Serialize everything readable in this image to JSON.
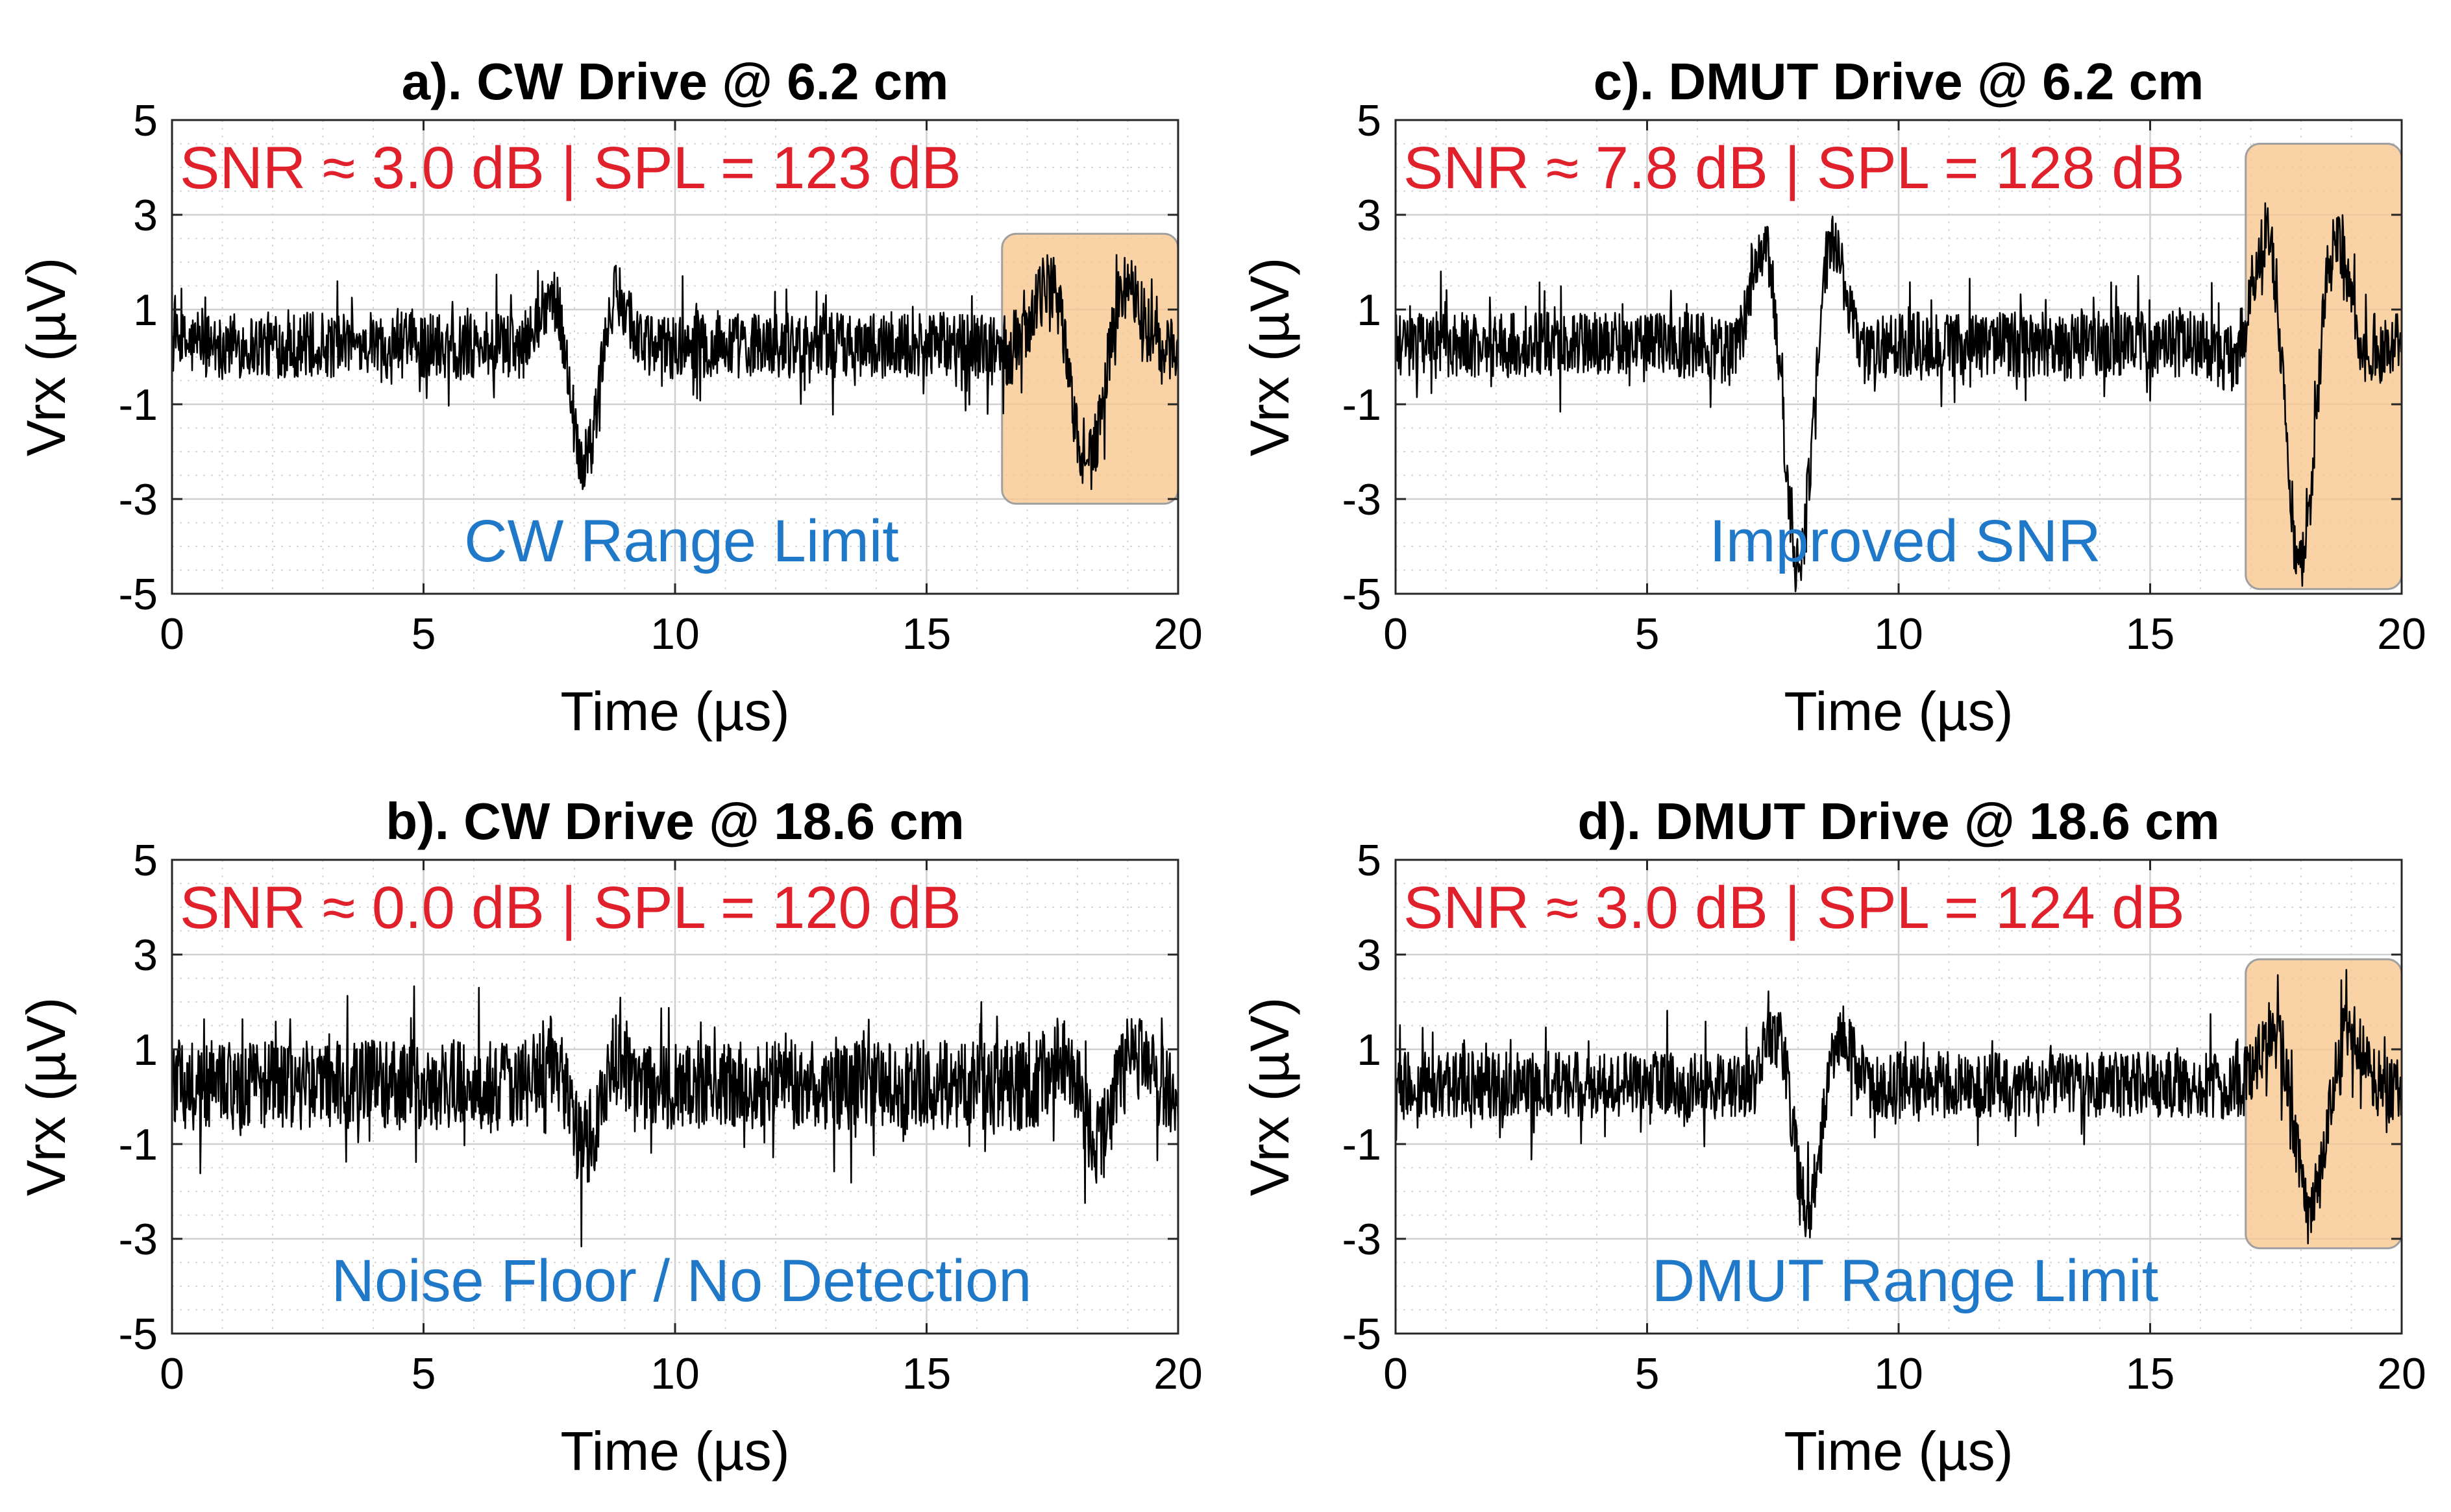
{
  "chart_data": [
    {
      "type": "line",
      "title": "a). CW Drive @ 6.2 cm",
      "xlabel": "Time (µs)",
      "ylabel": "Vrx (µV)",
      "xlim": [
        0,
        20
      ],
      "ylim": [
        -5,
        5
      ],
      "xticks": [
        0,
        5,
        10,
        15,
        20
      ],
      "yticks": [
        -5,
        -3,
        -1,
        1,
        3,
        5
      ],
      "xtick_labels": [
        "0",
        "5",
        "10",
        "15",
        "20"
      ],
      "ytick_labels": [
        "-5",
        "-3",
        "-1",
        "1",
        "3",
        "5"
      ],
      "grid": true,
      "minor_grid": true,
      "snr_text": "SNR ≈ 3.0 dB | SPL = 123 dB",
      "annotation": "CW Range Limit",
      "highlight_x": [
        16.5,
        20
      ],
      "highlight_y": [
        -3.1,
        2.6
      ],
      "series": [
        {
          "name": "Vrx",
          "noise_amp": 0.7,
          "pulses": [
            {
              "t": 8.2,
              "amp": 2.5,
              "width": 0.55,
              "freq": 0.62
            },
            {
              "t": 18.2,
              "amp": 2.5,
              "width": 0.75,
              "freq": 0.55
            }
          ]
        }
      ]
    },
    {
      "type": "line",
      "title": "b). CW Drive @ 18.6 cm",
      "xlabel": "Time (µs)",
      "ylabel": "Vrx (µV)",
      "xlim": [
        0,
        20
      ],
      "ylim": [
        -5,
        5
      ],
      "xticks": [
        0,
        5,
        10,
        15,
        20
      ],
      "yticks": [
        -5,
        -3,
        -1,
        1,
        3,
        5
      ],
      "xtick_labels": [
        "0",
        "5",
        "10",
        "15",
        "20"
      ],
      "ytick_labels": [
        "-5",
        "-3",
        "-1",
        "1",
        "3",
        "5"
      ],
      "grid": true,
      "minor_grid": true,
      "snr_text": "SNR ≈ 0.0 dB | SPL = 120 dB",
      "annotation": "Noise Floor / No Detection",
      "series": [
        {
          "name": "Vrx",
          "noise_amp": 0.95,
          "pulses": [
            {
              "t": 8.2,
              "amp": 1.3,
              "width": 0.55,
              "freq": 0.62
            },
            {
              "t": 18.4,
              "amp": 1.2,
              "width": 0.6,
              "freq": 0.6
            }
          ]
        }
      ]
    },
    {
      "type": "line",
      "title": "c). DMUT Drive @ 6.2 cm",
      "xlabel": "Time (µs)",
      "ylabel": "Vrx (µV)",
      "xlim": [
        0,
        20
      ],
      "ylim": [
        -5,
        5
      ],
      "xticks": [
        0,
        5,
        10,
        15,
        20
      ],
      "yticks": [
        -5,
        -3,
        -1,
        1,
        3,
        5
      ],
      "xtick_labels": [
        "0",
        "5",
        "10",
        "15",
        "20"
      ],
      "ytick_labels": [
        "-5",
        "-3",
        "-1",
        "1",
        "3",
        "5"
      ],
      "grid": true,
      "minor_grid": true,
      "snr_text": "SNR ≈ 7.8 dB | SPL = 128 dB",
      "annotation": "Improved SNR",
      "highlight_x": [
        16.9,
        20
      ],
      "highlight_y": [
        -4.9,
        4.5
      ],
      "series": [
        {
          "name": "Vrx",
          "noise_amp": 0.7,
          "pulses": [
            {
              "t": 8.0,
              "amp": 4.6,
              "width": 0.6,
              "freq": 0.62
            },
            {
              "t": 18.0,
              "amp": 4.6,
              "width": 0.65,
              "freq": 0.62
            }
          ]
        }
      ]
    },
    {
      "type": "line",
      "title": "d). DMUT Drive @ 18.6 cm",
      "xlabel": "Time (µs)",
      "ylabel": "Vrx (µV)",
      "xlim": [
        0,
        20
      ],
      "ylim": [
        -5,
        5
      ],
      "xticks": [
        0,
        5,
        10,
        15,
        20
      ],
      "yticks": [
        -5,
        -3,
        -1,
        1,
        3,
        5
      ],
      "xtick_labels": [
        "0",
        "5",
        "10",
        "15",
        "20"
      ],
      "ytick_labels": [
        "-5",
        "-3",
        "-1",
        "1",
        "3",
        "5"
      ],
      "grid": true,
      "minor_grid": true,
      "snr_text": "SNR ≈ 3.0 dB | SPL = 124 dB",
      "annotation": "DMUT Range Limit",
      "highlight_x": [
        16.9,
        20
      ],
      "highlight_y": [
        -3.2,
        2.9
      ],
      "series": [
        {
          "name": "Vrx",
          "noise_amp": 0.7,
          "pulses": [
            {
              "t": 8.2,
              "amp": 2.6,
              "width": 0.55,
              "freq": 0.62
            },
            {
              "t": 18.2,
              "amp": 2.6,
              "width": 0.65,
              "freq": 0.55
            }
          ]
        }
      ]
    }
  ],
  "colors": {
    "trace": "#000000",
    "snr_text": "#e0202a",
    "annotation_text": "#1f78c8",
    "highlight_fill": "#f8c890",
    "highlight_stroke": "#a0a0a0",
    "grid_major": "#cfcfcf",
    "grid_minor": "#d6d6d6"
  }
}
